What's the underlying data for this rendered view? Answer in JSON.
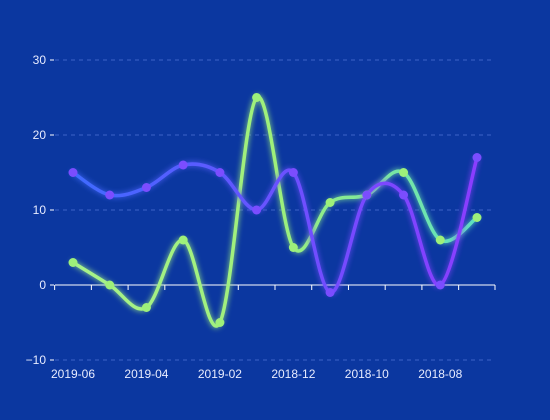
{
  "chart_data": {
    "type": "line",
    "title": "",
    "xlabel": "",
    "ylabel": "",
    "x_labels": [
      "2019-06",
      "2019-04",
      "2019-02",
      "2018-12",
      "2018-10",
      "2018-08"
    ],
    "ylim": [
      -10,
      30
    ],
    "y_ticks": [
      -10,
      0,
      10,
      20,
      30
    ],
    "grid": true,
    "smooth": true,
    "colors": {
      "background": "#0b37a0",
      "grid": "#3d63c7",
      "axis": "#ffffff",
      "tick_text": "#e8ecff"
    },
    "series": [
      {
        "color": "#9ef07a",
        "values": [
          3,
          0,
          -3,
          6,
          -5,
          25,
          5,
          11,
          12,
          15,
          6,
          9
        ]
      },
      {
        "color": "#7b4dff",
        "values": [
          15,
          12,
          13,
          16,
          15,
          10,
          15,
          -1,
          12,
          12,
          0,
          17
        ]
      }
    ]
  }
}
